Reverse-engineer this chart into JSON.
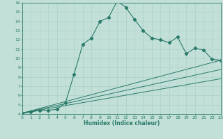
{
  "xlabel": "Humidex (Indice chaleur)",
  "xlim": [
    0,
    23
  ],
  "ylim": [
    4,
    16
  ],
  "xticks": [
    0,
    1,
    2,
    3,
    4,
    5,
    6,
    7,
    8,
    9,
    10,
    11,
    12,
    13,
    14,
    15,
    16,
    17,
    18,
    19,
    20,
    21,
    22,
    23
  ],
  "yticks": [
    4,
    5,
    6,
    7,
    8,
    9,
    10,
    11,
    12,
    13,
    14,
    15,
    16
  ],
  "background_color": "#c2e0d8",
  "line_color": "#2a7a6a",
  "grid_color": "#a8cec8",
  "series1_x": [
    0,
    1,
    2,
    3,
    4,
    5,
    6,
    7,
    8,
    9,
    10,
    11,
    12,
    13,
    14,
    15,
    16,
    17,
    18,
    19,
    20,
    21,
    22,
    23
  ],
  "series1_y": [
    4.1,
    4.2,
    4.4,
    4.4,
    4.5,
    5.2,
    8.3,
    11.5,
    12.2,
    14.0,
    14.4,
    16.2,
    15.5,
    14.2,
    13.0,
    12.2,
    12.0,
    11.7,
    12.3,
    10.5,
    11.1,
    10.9,
    9.9,
    9.8
  ],
  "series2_x": [
    0,
    23
  ],
  "series2_y": [
    4.1,
    9.8
  ],
  "series3_x": [
    0,
    23
  ],
  "series3_y": [
    4.1,
    8.8
  ],
  "series4_x": [
    0,
    23
  ],
  "series4_y": [
    4.1,
    7.8
  ]
}
